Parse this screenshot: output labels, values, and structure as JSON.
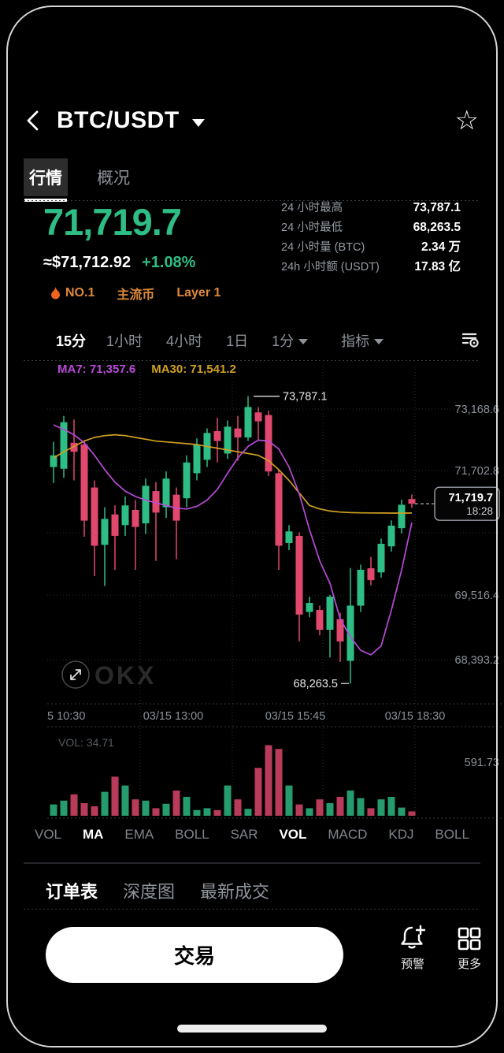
{
  "header": {
    "title": "BTC/USDT"
  },
  "tabs": [
    {
      "label": "行情",
      "active": true
    },
    {
      "label": "概况",
      "active": false
    }
  ],
  "ticker": {
    "price": "71,719.7",
    "fiat": "≈$71,712.92",
    "change": "+1.08%",
    "badges": [
      {
        "icon": "flame-icon",
        "label": "NO.1"
      },
      {
        "label": "主流币"
      },
      {
        "label": "Layer 1"
      }
    ],
    "stats": [
      {
        "label": "24 小时最高",
        "value": "73,787.1"
      },
      {
        "label": "24 小时最低",
        "value": "68,263.5"
      },
      {
        "label": "24 小时量 (BTC)",
        "value": "2.34 万"
      },
      {
        "label": "24h 小时额 (USDT)",
        "value": "17.83 亿"
      }
    ]
  },
  "timeframes": [
    {
      "label": "15分",
      "active": true
    },
    {
      "label": "1小时",
      "active": false
    },
    {
      "label": "4小时",
      "active": false
    },
    {
      "label": "1日",
      "active": false
    },
    {
      "label": "1分",
      "active": false,
      "dropdown": true
    },
    {
      "label": "指标",
      "active": false,
      "dropdown": true
    }
  ],
  "chart_data": {
    "type": "candlestick",
    "title": "BTC/USDT 15分 K线",
    "ma_labels": {
      "ma7": "MA7: 71,357.6",
      "ma30": "MA30: 71,541.2"
    },
    "y_axis_labels": [
      {
        "text": "73,168.6",
        "y": 61
      },
      {
        "text": "71,702.8",
        "y": 139
      },
      {
        "text": "69,516.4",
        "y": 297
      },
      {
        "text": "68,393.2",
        "y": 379
      }
    ],
    "x_axis_labels": [
      {
        "text": "5 10:30",
        "x": 0,
        "anchor": "start"
      },
      {
        "text": "03/15 13:00",
        "x": 160,
        "anchor": "middle"
      },
      {
        "text": "03/15 15:45",
        "x": 315,
        "anchor": "middle"
      },
      {
        "text": "03/15 18:30",
        "x": 467,
        "anchor": "middle"
      }
    ],
    "high_annotation": {
      "text": "73,787.1",
      "value": 73787.1,
      "candle_index": 19
    },
    "low_annotation": {
      "text": "68,263.5",
      "value": 68263.5,
      "candle_index": 29
    },
    "last_price": {
      "text": "71,719.7",
      "value": 71719.7,
      "time": "18:28"
    },
    "ylim": [
      68100,
      73950
    ],
    "candles": [
      [
        72427,
        72909,
        72118,
        72651
      ],
      [
        72393,
        73408,
        72221,
        73288
      ],
      [
        72892,
        73340,
        72169,
        72720
      ],
      [
        72858,
        72944,
        71085,
        71395
      ],
      [
        72032,
        72169,
        70328,
        70913
      ],
      [
        70930,
        71653,
        70139,
        71429
      ],
      [
        71515,
        71688,
        70449,
        71102
      ],
      [
        71309,
        71860,
        71102,
        71688
      ],
      [
        71601,
        71791,
        70449,
        71274
      ],
      [
        71343,
        72204,
        71137,
        72066
      ],
      [
        71963,
        72135,
        70621,
        71550
      ],
      [
        71653,
        72341,
        71446,
        72204
      ],
      [
        71894,
        72032,
        70655,
        71395
      ],
      [
        71825,
        72651,
        71653,
        72514
      ],
      [
        72307,
        72978,
        72169,
        72858
      ],
      [
        72565,
        73168,
        72427,
        73081
      ],
      [
        73116,
        73374,
        72514,
        72926
      ],
      [
        72686,
        73322,
        72582,
        73202
      ],
      [
        73168,
        73408,
        72548,
        72995
      ],
      [
        72995,
        73787.1,
        72926,
        73580
      ],
      [
        73477,
        73580,
        72926,
        73305
      ],
      [
        73426,
        73512,
        72255,
        72341
      ],
      [
        72307,
        72376,
        70449,
        70913
      ],
      [
        70965,
        71309,
        70827,
        71188
      ],
      [
        71102,
        71171,
        69073,
        69589
      ],
      [
        69640,
        69933,
        69537,
        69812
      ],
      [
        69675,
        69761,
        69193,
        69297
      ],
      [
        69297,
        69967,
        68763,
        69933
      ],
      [
        69503,
        69623,
        68677,
        69073
      ],
      [
        68700,
        70483,
        68263.5,
        69761
      ],
      [
        69761,
        70550,
        69640,
        70450
      ],
      [
        70480,
        70700,
        70150,
        70250
      ],
      [
        70400,
        71050,
        70300,
        70950
      ],
      [
        70900,
        71400,
        70800,
        71300
      ],
      [
        71250,
        71800,
        71150,
        71700
      ],
      [
        71810,
        71900,
        71640,
        71719.7
      ]
    ],
    "ma7": [
      73236,
      73150,
      73047,
      72892,
      72651,
      72376,
      72135,
      71963,
      71860,
      71791,
      71739,
      71688,
      71636,
      71619,
      71670,
      71791,
      71997,
      72307,
      72600,
      72823,
      72944,
      72926,
      72772,
      72427,
      71911,
      71223,
      70621,
      70191,
      69503,
      69159,
      68901,
      68815,
      68987,
      69675,
      70449,
      71357.6
    ],
    "ma30": [
      72600,
      72720,
      72823,
      72926,
      72995,
      73030,
      73047,
      73030,
      72995,
      72961,
      72926,
      72909,
      72892,
      72875,
      72858,
      72823,
      72789,
      72754,
      72720,
      72686,
      72651,
      72548,
      72376,
      72169,
      71928,
      71688,
      71620,
      71580,
      71560,
      71550,
      71545,
      71543,
      71542,
      71541,
      71541,
      71541.2
    ],
    "volume": {
      "values": [
        90,
        120,
        170,
        100,
        75,
        190,
        310,
        240,
        130,
        120,
        60,
        95,
        200,
        150,
        45,
        60,
        45,
        240,
        130,
        55,
        380,
        560,
        530,
        240,
        90,
        60,
        130,
        100,
        150,
        200,
        140,
        60,
        130,
        150,
        65,
        34.71
      ],
      "current_label": "VOL: 34.71",
      "max_label": "591.73"
    },
    "watermark": "OKX"
  },
  "indicator_tabs": [
    {
      "label": "VOL",
      "active": false
    },
    {
      "label": "MA",
      "active": true
    },
    {
      "label": "EMA",
      "active": false
    },
    {
      "label": "BOLL",
      "active": false
    },
    {
      "label": "SAR",
      "active": false
    },
    {
      "label": "VOL",
      "active": true
    },
    {
      "label": "MACD",
      "active": false
    },
    {
      "label": "KDJ",
      "active": false
    },
    {
      "label": "BOLL",
      "active": false
    }
  ],
  "bottom_tabs": [
    {
      "label": "订单表",
      "active": true
    },
    {
      "label": "深度图",
      "active": false
    },
    {
      "label": "最新成交",
      "active": false
    }
  ],
  "footer": {
    "trade_button": "交易",
    "alert_label": "预警",
    "more_label": "更多"
  },
  "colors": {
    "up": "#2ebd85",
    "down": "#e0486e",
    "price_green": "#2ebd85",
    "accent_orange": "#df8a3a",
    "flame_orange": "#f0641e",
    "ma7": "#b84bd8",
    "ma30": "#cfa022",
    "axis_gray": "#8b9198",
    "dim_gray": "#565b61",
    "grid": "#2a2e35"
  }
}
